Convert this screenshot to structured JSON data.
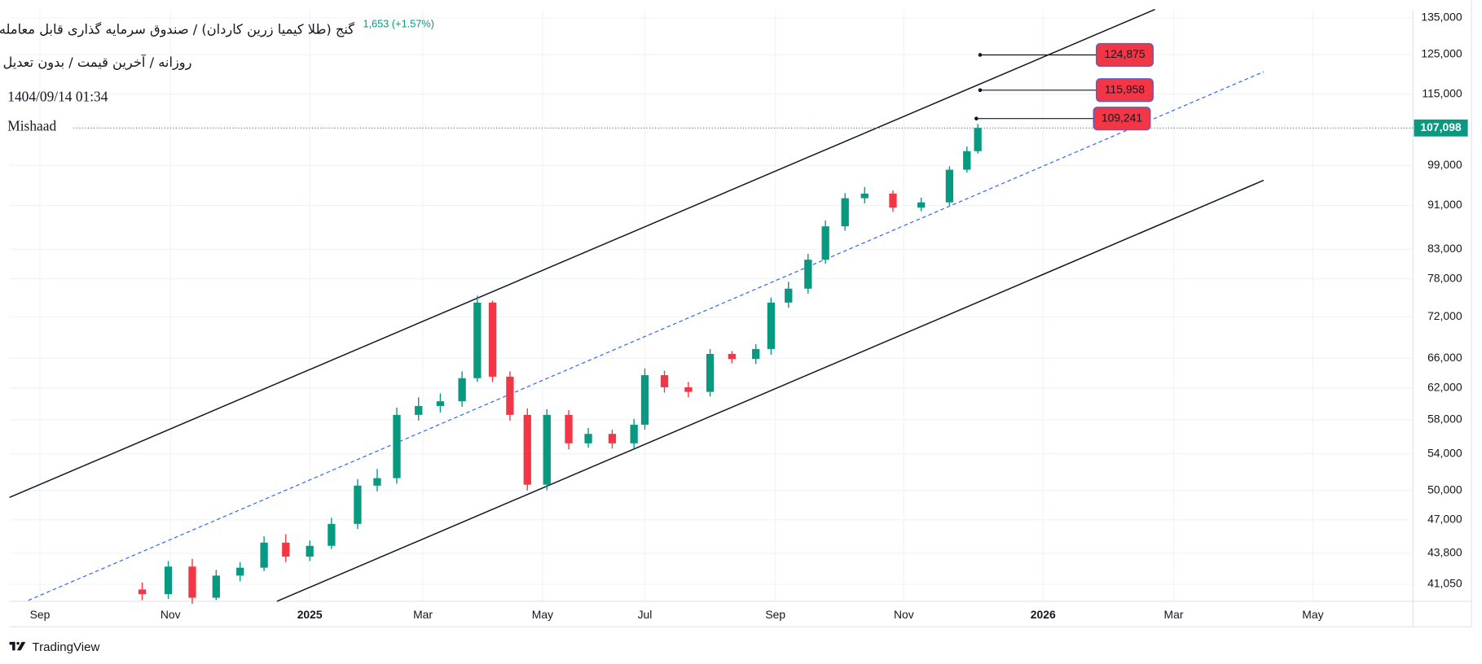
{
  "header": {
    "title": "گنج (طلا کیمیا زرین کاردان) / صندوق سرمایه گذاری قابل معامله",
    "subtitle": "روزانه / آخرین قیمت / بدون تعدیل",
    "change": "1,653 (+1.57%)",
    "datetime": "1404/09/14 01:34",
    "author": "Mishaad"
  },
  "footer": {
    "brand": "TradingView"
  },
  "chart_data": {
    "type": "candlestick",
    "log_scale": true,
    "grid": true,
    "up_color": "#089981",
    "down_color": "#f23645",
    "x": [
      47,
      59,
      70,
      81,
      92,
      103,
      113,
      124,
      134,
      146,
      155,
      164,
      174,
      184,
      194,
      201,
      208,
      216,
      224,
      233,
      243,
      252,
      263,
      273,
      278,
      287,
      298,
      308,
      318,
      329,
      336,
      344,
      353,
      361,
      370,
      379,
      392,
      405,
      418,
      426,
      431
    ],
    "open": [
      40600,
      40200,
      42600,
      39900,
      41800,
      42500,
      44800,
      43500,
      44500,
      46600,
      50500,
      51300,
      58600,
      59700,
      60300,
      63300,
      74200,
      63500,
      58600,
      50600,
      58600,
      55200,
      56300,
      55200,
      57400,
      63700,
      62100,
      61500,
      66600,
      65900,
      67300,
      74200,
      76400,
      81200,
      87100,
      92400,
      93300,
      90600,
      91600,
      98100,
      102000
    ],
    "high": [
      41200,
      43100,
      43300,
      42300,
      43000,
      45400,
      45600,
      45000,
      47200,
      51200,
      52300,
      59500,
      60800,
      61300,
      64200,
      75300,
      74500,
      64200,
      59400,
      59300,
      59200,
      57000,
      56800,
      58100,
      64600,
      64300,
      62800,
      67300,
      67000,
      68000,
      75000,
      77500,
      82200,
      88200,
      93400,
      94600,
      93900,
      92500,
      98800,
      103000,
      108000
    ],
    "low": [
      39700,
      39800,
      39400,
      39700,
      41300,
      42200,
      43000,
      43100,
      44200,
      46100,
      49900,
      50700,
      57900,
      58900,
      59600,
      62800,
      62800,
      57900,
      50000,
      50000,
      54500,
      54700,
      54600,
      54600,
      56800,
      61400,
      60800,
      60900,
      65300,
      65200,
      66500,
      73400,
      75600,
      80500,
      86300,
      91400,
      89800,
      89900,
      91000,
      97500,
      101500
    ],
    "close": [
      40200,
      42600,
      39900,
      41800,
      42500,
      44800,
      43500,
      44500,
      46600,
      50500,
      51300,
      58600,
      59700,
      60300,
      63300,
      74200,
      63500,
      58600,
      50600,
      58600,
      55200,
      56300,
      55200,
      57400,
      63700,
      62100,
      61500,
      66600,
      65900,
      67300,
      74200,
      76400,
      81200,
      87100,
      92400,
      93300,
      90600,
      91600,
      98100,
      102000,
      107098
    ],
    "xlim": [
      -14,
      631
    ],
    "xticks": [
      {
        "value": 0,
        "label": "Sep"
      },
      {
        "value": 60,
        "label": "Nov"
      },
      {
        "value": 124,
        "label": "2025"
      },
      {
        "value": 176,
        "label": "Mar"
      },
      {
        "value": 231,
        "label": "May"
      },
      {
        "value": 278,
        "label": "Jul"
      },
      {
        "value": 338,
        "label": "Sep"
      },
      {
        "value": 397,
        "label": "Nov"
      },
      {
        "value": 461,
        "label": "2026"
      },
      {
        "value": 521,
        "label": "Mar"
      },
      {
        "value": 585,
        "label": "May"
      }
    ],
    "ylim": [
      39600,
      137400
    ],
    "yticks": [
      {
        "value": 135000,
        "label": "135,000"
      },
      {
        "value": 125000,
        "label": "125,000"
      },
      {
        "value": 115000,
        "label": "115,000"
      },
      {
        "value": 99000,
        "label": "99,000"
      },
      {
        "value": 91000,
        "label": "91,000"
      },
      {
        "value": 83000,
        "label": "83,000"
      },
      {
        "value": 78000,
        "label": "78,000"
      },
      {
        "value": 72000,
        "label": "72,000"
      },
      {
        "value": 66000,
        "label": "66,000"
      },
      {
        "value": 62000,
        "label": "62,000"
      },
      {
        "value": 58000,
        "label": "58,000"
      },
      {
        "value": 54000,
        "label": "54,000"
      },
      {
        "value": 50000,
        "label": "50,000"
      },
      {
        "value": 47000,
        "label": "47,000"
      },
      {
        "value": 43800,
        "label": "43,800"
      },
      {
        "value": 41050,
        "label": "41,050"
      }
    ],
    "last_price": {
      "value": 107098,
      "label": "107,098"
    },
    "annotations": [
      {
        "value": 124875,
        "label": "124,875"
      },
      {
        "value": 115958,
        "label": "115,958"
      },
      {
        "value": 109241,
        "label": "109,241"
      }
    ]
  }
}
